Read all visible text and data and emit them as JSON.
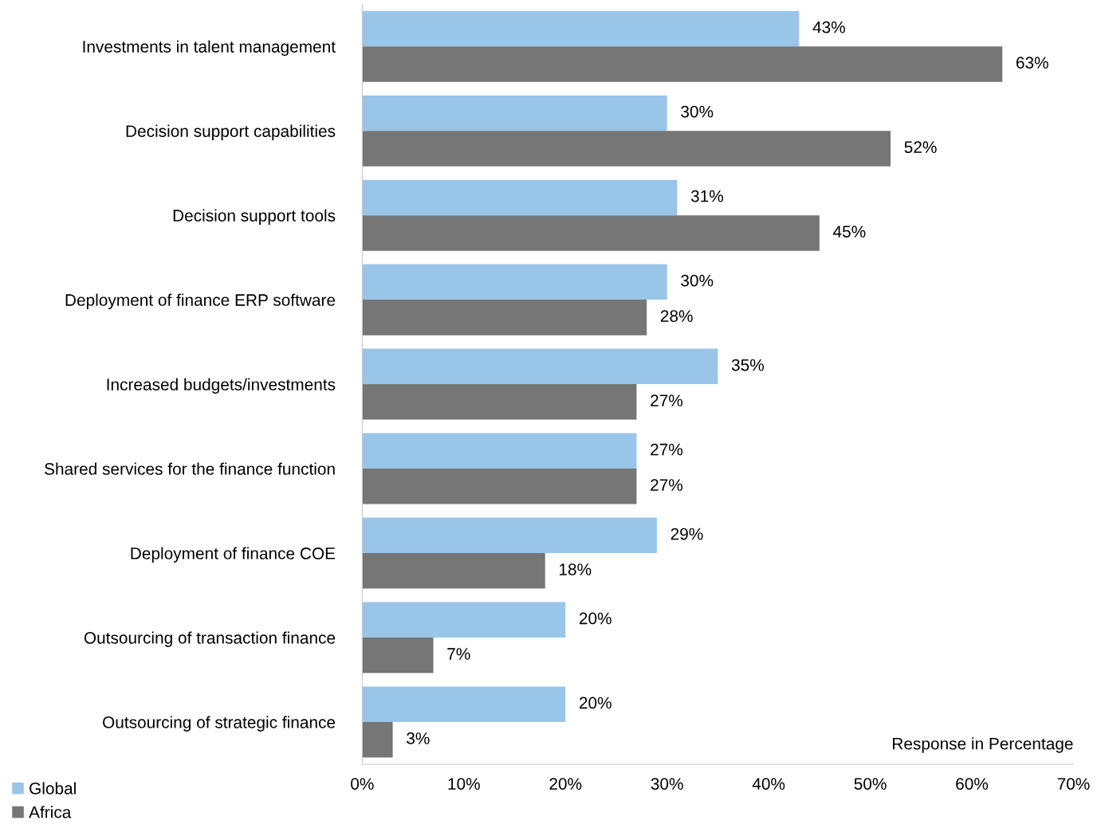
{
  "chart_data": {
    "type": "bar",
    "orientation": "horizontal",
    "categories": [
      "Investments in talent management",
      "Decision support capabilities",
      "Decision support tools",
      "Deployment of finance ERP software",
      "Increased budgets/investments",
      "Shared services for the finance function",
      "Deployment of finance COE",
      "Outsourcing of transaction finance",
      "Outsourcing of strategic finance"
    ],
    "series": [
      {
        "name": "Global",
        "color": "#99c5e8",
        "values": [
          43,
          30,
          31,
          30,
          35,
          27,
          29,
          20,
          20
        ],
        "value_labels": [
          "43%",
          "30%",
          "31%",
          "30%",
          "35%",
          "27%",
          "29%",
          "20%",
          "20%"
        ]
      },
      {
        "name": "Africa",
        "color": "#767676",
        "values": [
          63,
          52,
          45,
          28,
          27,
          27,
          18,
          7,
          3
        ],
        "value_labels": [
          "63%",
          "52%",
          "45%",
          "28%",
          "27%",
          "27%",
          "18%",
          "7%",
          "3%"
        ]
      }
    ],
    "xlim": [
      0,
      70
    ],
    "xticks": [
      {
        "value": 0,
        "label": "0%"
      },
      {
        "value": 10,
        "label": "10%"
      },
      {
        "value": 20,
        "label": "20%"
      },
      {
        "value": 30,
        "label": "30%"
      },
      {
        "value": 40,
        "label": "40%"
      },
      {
        "value": 50,
        "label": "50%"
      },
      {
        "value": 60,
        "label": "60%"
      },
      {
        "value": 70,
        "label": "70%"
      }
    ],
    "xlabel": "Response in Percentage",
    "legend": "bottom left",
    "grid": false
  }
}
